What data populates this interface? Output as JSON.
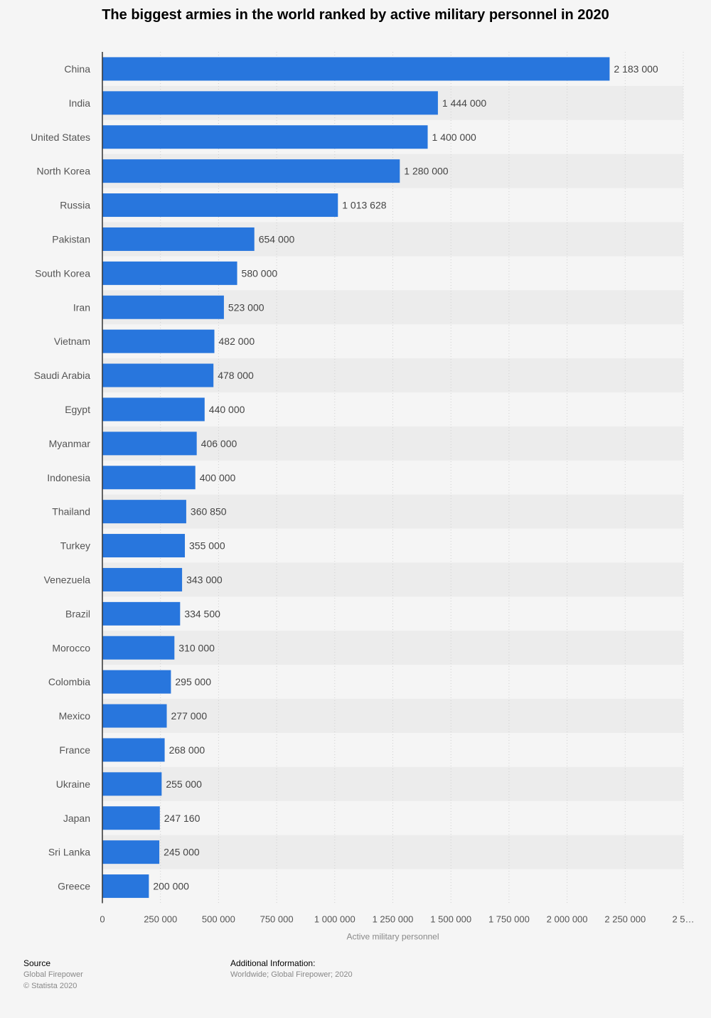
{
  "chart_data": {
    "type": "bar",
    "orientation": "horizontal",
    "title": "The biggest armies in the world ranked by active military personnel in 2020",
    "xlabel": "Active military personnel",
    "ylabel": "",
    "categories": [
      "China",
      "India",
      "United States",
      "North Korea",
      "Russia",
      "Pakistan",
      "South Korea",
      "Iran",
      "Vietnam",
      "Saudi Arabia",
      "Egypt",
      "Myanmar",
      "Indonesia",
      "Thailand",
      "Turkey",
      "Venezuela",
      "Brazil",
      "Morocco",
      "Colombia",
      "Mexico",
      "France",
      "Ukraine",
      "Japan",
      "Sri Lanka",
      "Greece"
    ],
    "values": [
      2183000,
      1444000,
      1400000,
      1280000,
      1013628,
      654000,
      580000,
      523000,
      482000,
      478000,
      440000,
      406000,
      400000,
      360850,
      355000,
      343000,
      334500,
      310000,
      295000,
      277000,
      268000,
      255000,
      247160,
      245000,
      200000
    ],
    "value_labels": [
      "2 183 000",
      "1 444 000",
      "1 400 000",
      "1 280 000",
      "1 013 628",
      "654 000",
      "580 000",
      "523 000",
      "482 000",
      "478 000",
      "440 000",
      "406 000",
      "400 000",
      "360 850",
      "355 000",
      "343 000",
      "334 500",
      "310 000",
      "295 000",
      "277 000",
      "268 000",
      "255 000",
      "247 160",
      "245 000",
      "200 000"
    ],
    "xlim": [
      0,
      2500000
    ],
    "x_ticks": [
      0,
      250000,
      500000,
      750000,
      1000000,
      1250000,
      1500000,
      1750000,
      2000000,
      2250000,
      2500000
    ],
    "x_tick_labels": [
      "0",
      "250 000",
      "500 000",
      "750 000",
      "1 000 000",
      "1 250 000",
      "1 500 000",
      "1 750 000",
      "2 000 000",
      "2 250 000",
      "2 5…"
    ],
    "grid": true,
    "bar_color": "#2876dd"
  },
  "footer": {
    "source_heading": "Source",
    "source_name": "Global Firepower",
    "copyright": "© Statista 2020",
    "info_heading": "Additional Information:",
    "info_text": "Worldwide; Global Firepower; 2020"
  }
}
